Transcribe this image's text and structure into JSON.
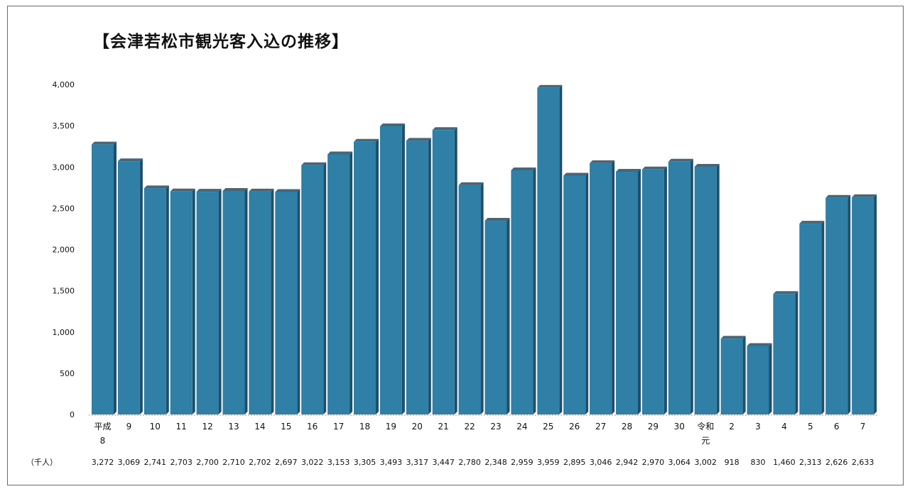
{
  "chart_data": {
    "type": "bar",
    "title": "【会津若松市観光客入込の推移】",
    "unit_label": "（千人）",
    "ylim": [
      0,
      4000
    ],
    "y_ticks": [
      "0",
      "500",
      "1,000",
      "1,500",
      "2,000",
      "2,500",
      "3,000",
      "3,500",
      "4,000"
    ],
    "y_tick_values": [
      0,
      500,
      1000,
      1500,
      2000,
      2500,
      3000,
      3500,
      4000
    ],
    "grid": false,
    "legend": "none",
    "bar_color": "#2f7fa6",
    "categories": [
      [
        "平成",
        "8"
      ],
      [
        "9"
      ],
      [
        "10"
      ],
      [
        "11"
      ],
      [
        "12"
      ],
      [
        "13"
      ],
      [
        "14"
      ],
      [
        "15"
      ],
      [
        "16"
      ],
      [
        "17"
      ],
      [
        "18"
      ],
      [
        "19"
      ],
      [
        "20"
      ],
      [
        "21"
      ],
      [
        "22"
      ],
      [
        "23"
      ],
      [
        "24"
      ],
      [
        "25"
      ],
      [
        "26"
      ],
      [
        "27"
      ],
      [
        "28"
      ],
      [
        "29"
      ],
      [
        "30"
      ],
      [
        "令和",
        "元"
      ],
      [
        "2"
      ],
      [
        "3"
      ],
      [
        "4"
      ],
      [
        "5"
      ],
      [
        "6"
      ],
      [
        "7"
      ]
    ],
    "values": [
      3272,
      3069,
      2741,
      2703,
      2700,
      2710,
      2702,
      2697,
      3022,
      3153,
      3305,
      3493,
      3317,
      3447,
      2780,
      2348,
      2959,
      3959,
      2895,
      3046,
      2942,
      2970,
      3064,
      3002,
      918,
      830,
      1460,
      2313,
      2626,
      2633
    ],
    "value_labels": [
      "3,272",
      "3,069",
      "2,741",
      "2,703",
      "2,700",
      "2,710",
      "2,702",
      "2,697",
      "3,022",
      "3,153",
      "3,305",
      "3,493",
      "3,317",
      "3,447",
      "2,780",
      "2,348",
      "2,959",
      "3,959",
      "2,895",
      "3,046",
      "2,942",
      "2,970",
      "3,064",
      "3,002",
      "918",
      "830",
      "1,460",
      "2,313",
      "2,626",
      "2,633"
    ]
  }
}
